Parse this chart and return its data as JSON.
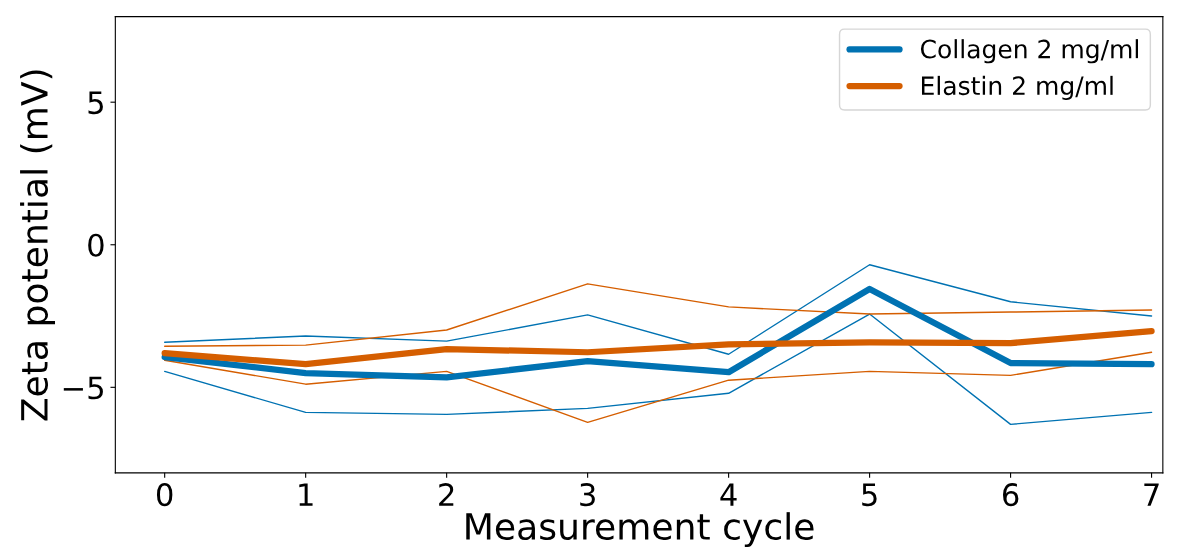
{
  "chart_data": {
    "type": "line",
    "xlabel": "Measurement cycle",
    "ylabel": "Zeta potential (mV)",
    "x": [
      0,
      1,
      2,
      3,
      4,
      5,
      6,
      7
    ],
    "series": [
      {
        "color": "#0072b2",
        "values": [
          -3.42,
          -3.2,
          -3.38,
          -2.46,
          -3.84,
          -0.7,
          -2.0,
          -2.5
        ]
      },
      {
        "color": "#0072b2",
        "values": [
          -4.44,
          -5.88,
          -5.95,
          -5.74,
          -5.21,
          -2.43,
          -6.3,
          -5.88
        ]
      },
      {
        "color": "#d55e00",
        "values": [
          -3.56,
          -3.52,
          -2.99,
          -1.37,
          -2.18,
          -2.43,
          -2.36,
          -2.29
        ]
      },
      {
        "color": "#d55e00",
        "values": [
          -4.05,
          -4.89,
          -4.44,
          -6.23,
          -4.75,
          -4.44,
          -4.58,
          -3.77
        ]
      },
      {
        "name": "Collagen 2 mg/ml",
        "color": "#0072b2",
        "values": [
          -3.94,
          -4.5,
          -4.65,
          -4.08,
          -4.47,
          -1.55,
          -4.15,
          -4.19
        ]
      },
      {
        "name": "Elastin 2 mg/ml",
        "color": "#d55e00",
        "values": [
          -3.8,
          -4.19,
          -3.66,
          -3.77,
          -3.49,
          -3.42,
          -3.45,
          -3.03
        ]
      }
    ],
    "xlim": [
      -0.35,
      7.08
    ],
    "xticks": [
      0,
      1,
      2,
      3,
      4,
      5,
      6,
      7
    ],
    "ylim": [
      -8,
      8
    ],
    "yticks": [
      {
        "value": -5,
        "label": "−5"
      },
      0,
      5
    ],
    "grid": false,
    "legend": "top right",
    "marker": "none",
    "line_style": "solid"
  }
}
